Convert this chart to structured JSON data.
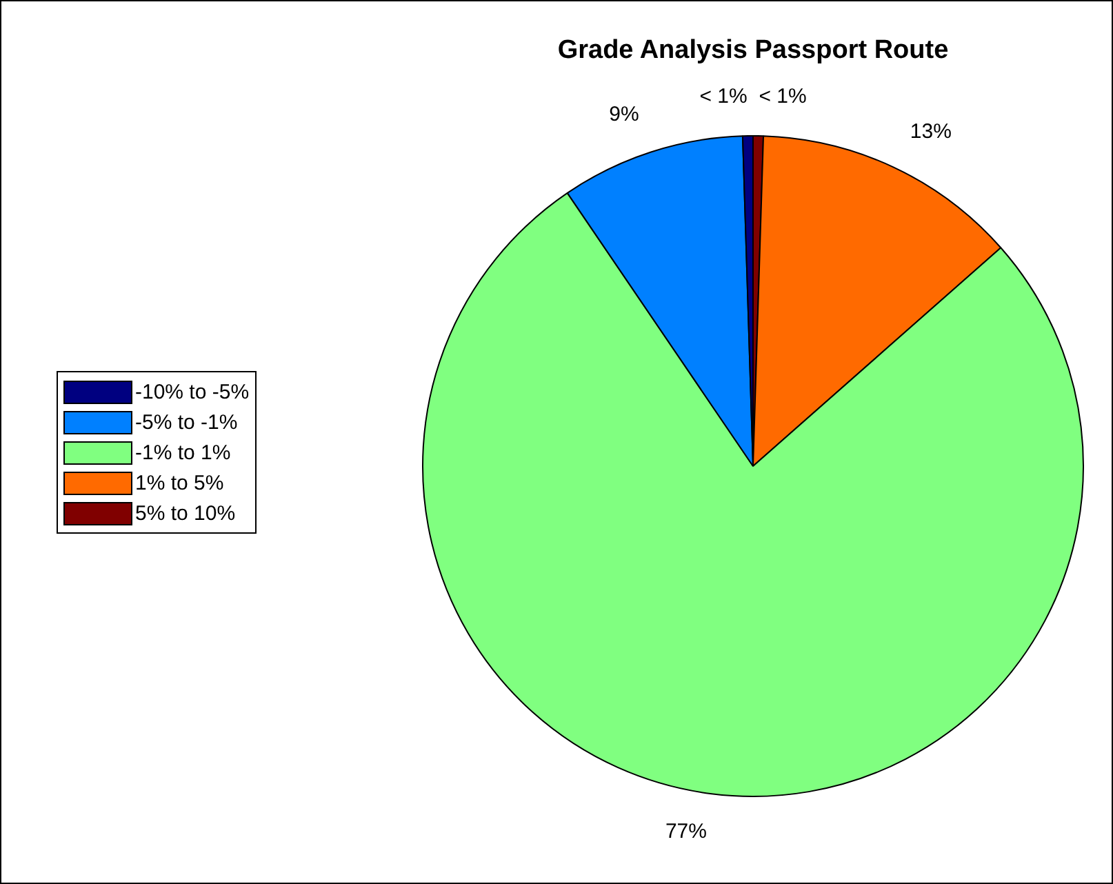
{
  "chart_data": {
    "type": "pie",
    "title": "Grade Analysis Passport Route",
    "categories": [
      "-10% to -5%",
      "-5% to -1%",
      "-1% to 1%",
      "1% to 5%",
      "5% to 10%"
    ],
    "values": [
      0.5,
      9,
      77,
      13,
      0.5
    ],
    "colors": [
      "#000080",
      "#0080ff",
      "#80ff80",
      "#ff6a00",
      "#800000"
    ],
    "value_labels": [
      "< 1%",
      "9%",
      "77%",
      "13%",
      "< 1%"
    ],
    "legend": "left"
  }
}
